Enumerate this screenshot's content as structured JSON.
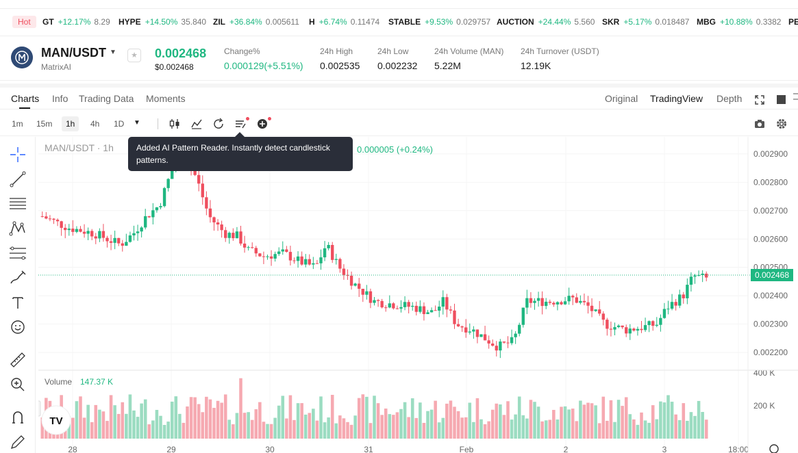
{
  "ticker": {
    "hot_label": "Hot",
    "items": [
      {
        "symbol": "GT",
        "change": "+12.17%",
        "price": "8.29"
      },
      {
        "symbol": "HYPE",
        "change": "+14.50%",
        "price": "35.840"
      },
      {
        "symbol": "ZIL",
        "change": "+36.84%",
        "price": "0.005611"
      },
      {
        "symbol": "H",
        "change": "+6.74%",
        "price": "0.11474"
      },
      {
        "symbol": "STABLE",
        "change": "+9.53%",
        "price": "0.029757"
      },
      {
        "symbol": "AUCTION",
        "change": "+24.44%",
        "price": "5.560"
      },
      {
        "symbol": "SKR",
        "change": "+5.17%",
        "price": "0.018487"
      },
      {
        "symbol": "MBG",
        "change": "+10.88%",
        "price": "0.3382"
      },
      {
        "symbol": "PE",
        "change": "",
        "price": ""
      }
    ]
  },
  "header": {
    "pair": "MAN/USDT",
    "coin_name": "MatrixAI",
    "price": "0.002468",
    "price_usd": "$0.002468",
    "stats": [
      {
        "label": "Change%",
        "value": "0.000129(+5.51%)",
        "green": true
      },
      {
        "label": "24h High",
        "value": "0.002535",
        "green": false
      },
      {
        "label": "24h Low",
        "value": "0.002232",
        "green": false
      },
      {
        "label": "24h Volume (MAN)",
        "value": "5.22M",
        "green": false
      },
      {
        "label": "24h Turnover (USDT)",
        "value": "12.19K",
        "green": false
      }
    ]
  },
  "tabs": {
    "left": [
      "Charts",
      "Info",
      "Trading Data",
      "Moments"
    ],
    "right": [
      "Original",
      "TradingView",
      "Depth"
    ]
  },
  "toolbar": {
    "intervals": [
      "1m",
      "15m",
      "1h",
      "4h",
      "1D"
    ],
    "active_interval": "1h"
  },
  "tooltip": {
    "text": "Added AI Pattern Reader. Instantly detect candlestick patterns."
  },
  "chart_data": {
    "type": "candlestick",
    "title": "MAN/USDT · 1h",
    "legend_change": "0.000005 (+0.24%)",
    "last_price": "0.002468",
    "price_ticks": [
      "0.002900",
      "0.002800",
      "0.002700",
      "0.002600",
      "0.002500",
      "0.002400",
      "0.002300",
      "0.002200"
    ],
    "ylim": [
      0.00214,
      0.00296
    ],
    "x_ticks": [
      "28",
      "29",
      "30",
      "31",
      "Feb",
      "2",
      "3",
      "18:00"
    ],
    "volume_label": "Volume",
    "volume_value": "147.37 K",
    "volume_ticks": [
      "400 K",
      "200 K"
    ],
    "colors": {
      "up": "#1fb781",
      "down": "#ef4f5f"
    }
  }
}
